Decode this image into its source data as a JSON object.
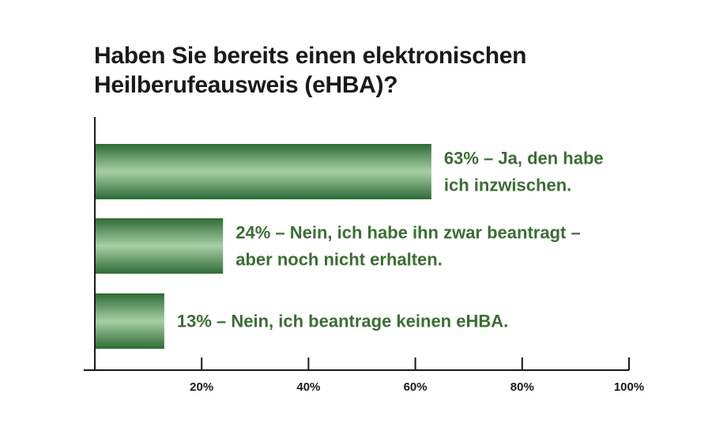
{
  "chart_data": {
    "type": "bar",
    "orientation": "horizontal",
    "title_lines": [
      "Haben Sie bereits einen elektronischen",
      "Heilberufeausweis (eHBA)?"
    ],
    "categories": [
      [
        "63% – Ja, den habe",
        "ich inzwischen."
      ],
      [
        "24% – Nein, ich habe ihn zwar beantragt –",
        "aber noch nicht erhalten."
      ],
      [
        "13% – Nein, ich beantrage keinen eHBA."
      ]
    ],
    "values": [
      63,
      24,
      13
    ],
    "xlim": [
      0,
      100
    ],
    "xticks": [
      20,
      40,
      60,
      80,
      100
    ],
    "xtick_labels": [
      "20%",
      "40%",
      "60%",
      "80%",
      "100%"
    ],
    "xlabel": "",
    "ylabel": "",
    "grid": false,
    "legend": "none",
    "colors": {
      "bar_dark": "#2e6b35",
      "bar_light": "#a7cfa5",
      "label": "#3b6e34",
      "axis": "#1a1a1a",
      "title": "#1a1a1a"
    }
  }
}
